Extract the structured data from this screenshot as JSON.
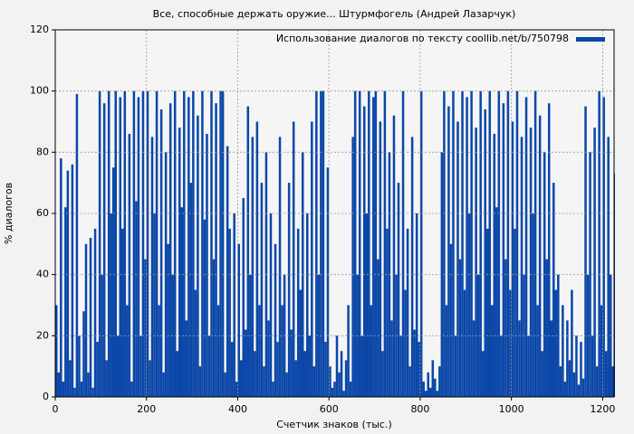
{
  "chart_data": {
    "type": "bar",
    "title": "Все, способные держать оружие... Штурмфогель (Андрей Лазарчук)",
    "xlabel": "Счетчик знаков (тыс.)",
    "ylabel": "% диалогов",
    "legend_position": "upper right",
    "grid": true,
    "xlim": [
      0,
      1225
    ],
    "ylim": [
      0,
      120
    ],
    "xticks": [
      0,
      200,
      400,
      600,
      800,
      1000,
      1200
    ],
    "yticks": [
      0,
      20,
      40,
      60,
      80,
      100,
      120
    ],
    "x": [
      0,
      5,
      10,
      15,
      20,
      25,
      30,
      35,
      40,
      45,
      50,
      55,
      60,
      65,
      70,
      75,
      80,
      85,
      90,
      95,
      100,
      105,
      110,
      115,
      120,
      125,
      130,
      135,
      140,
      145,
      150,
      155,
      160,
      165,
      170,
      175,
      180,
      185,
      190,
      195,
      200,
      205,
      210,
      215,
      220,
      225,
      230,
      235,
      240,
      245,
      250,
      255,
      260,
      265,
      270,
      275,
      280,
      285,
      290,
      295,
      300,
      305,
      310,
      315,
      320,
      325,
      330,
      335,
      340,
      345,
      350,
      355,
      360,
      365,
      370,
      375,
      380,
      385,
      390,
      395,
      400,
      405,
      410,
      415,
      420,
      425,
      430,
      435,
      440,
      445,
      450,
      455,
      460,
      465,
      470,
      475,
      480,
      485,
      490,
      495,
      500,
      505,
      510,
      515,
      520,
      525,
      530,
      535,
      540,
      545,
      550,
      555,
      560,
      565,
      570,
      575,
      580,
      585,
      590,
      595,
      600,
      605,
      610,
      615,
      620,
      625,
      630,
      635,
      640,
      645,
      650,
      655,
      660,
      665,
      670,
      675,
      680,
      685,
      690,
      695,
      700,
      705,
      710,
      715,
      720,
      725,
      730,
      735,
      740,
      745,
      750,
      755,
      760,
      765,
      770,
      775,
      780,
      785,
      790,
      795,
      800,
      805,
      810,
      815,
      820,
      825,
      830,
      835,
      840,
      845,
      850,
      855,
      860,
      865,
      870,
      875,
      880,
      885,
      890,
      895,
      900,
      905,
      910,
      915,
      920,
      925,
      930,
      935,
      940,
      945,
      950,
      955,
      960,
      965,
      970,
      975,
      980,
      985,
      990,
      995,
      1000,
      1005,
      1010,
      1015,
      1020,
      1025,
      1030,
      1035,
      1040,
      1045,
      1050,
      1055,
      1060,
      1065,
      1070,
      1075,
      1080,
      1085,
      1090,
      1095,
      1100,
      1105,
      1110,
      1115,
      1120,
      1125,
      1130,
      1135,
      1140,
      1145,
      1150,
      1155,
      1160,
      1165,
      1170,
      1175,
      1180,
      1185,
      1190,
      1195,
      1200,
      1205,
      1210,
      1215,
      1220,
      1225
    ],
    "series": [
      {
        "name": "Использование диалогов по тексту coollib.net/b/750798",
        "color": "#0b47a8",
        "values": [
          30,
          8,
          78,
          5,
          62,
          74,
          12,
          76,
          3,
          99,
          20,
          5,
          28,
          50,
          8,
          52,
          3,
          55,
          18,
          100,
          40,
          96,
          12,
          100,
          60,
          75,
          100,
          20,
          98,
          55,
          100,
          30,
          86,
          5,
          100,
          64,
          98,
          20,
          100,
          45,
          100,
          12,
          85,
          60,
          100,
          30,
          94,
          8,
          80,
          50,
          96,
          40,
          100,
          15,
          88,
          62,
          100,
          25,
          98,
          70,
          100,
          35,
          92,
          10,
          100,
          58,
          86,
          20,
          100,
          45,
          96,
          30,
          100,
          100,
          8,
          82,
          55,
          18,
          60,
          5,
          50,
          12,
          65,
          22,
          95,
          40,
          85,
          15,
          90,
          30,
          70,
          10,
          80,
          25,
          60,
          5,
          50,
          18,
          85,
          30,
          40,
          8,
          70,
          22,
          90,
          12,
          55,
          35,
          80,
          15,
          60,
          20,
          90,
          10,
          100,
          40,
          100,
          100,
          18,
          75,
          10,
          3,
          5,
          20,
          8,
          15,
          2,
          12,
          30,
          5,
          85,
          100,
          40,
          100,
          20,
          95,
          60,
          100,
          30,
          98,
          100,
          45,
          90,
          15,
          100,
          55,
          80,
          25,
          92,
          40,
          70,
          20,
          100,
          35,
          55,
          10,
          85,
          22,
          60,
          18,
          100,
          5,
          2,
          8,
          3,
          12,
          6,
          2,
          10,
          80,
          100,
          30,
          95,
          50,
          100,
          20,
          90,
          45,
          100,
          35,
          98,
          60,
          100,
          25,
          88,
          40,
          100,
          15,
          94,
          55,
          100,
          30,
          86,
          62,
          100,
          20,
          96,
          45,
          100,
          35,
          90,
          55,
          100,
          25,
          85,
          40,
          98,
          20,
          88,
          60,
          100,
          30,
          92,
          15,
          80,
          45,
          96,
          25,
          70,
          35,
          40,
          10,
          30,
          5,
          25,
          12,
          35,
          8,
          20,
          4,
          18,
          6,
          95,
          40,
          80,
          20,
          88,
          10,
          100,
          30,
          98,
          15,
          85,
          40,
          10,
          73
        ]
      }
    ]
  }
}
